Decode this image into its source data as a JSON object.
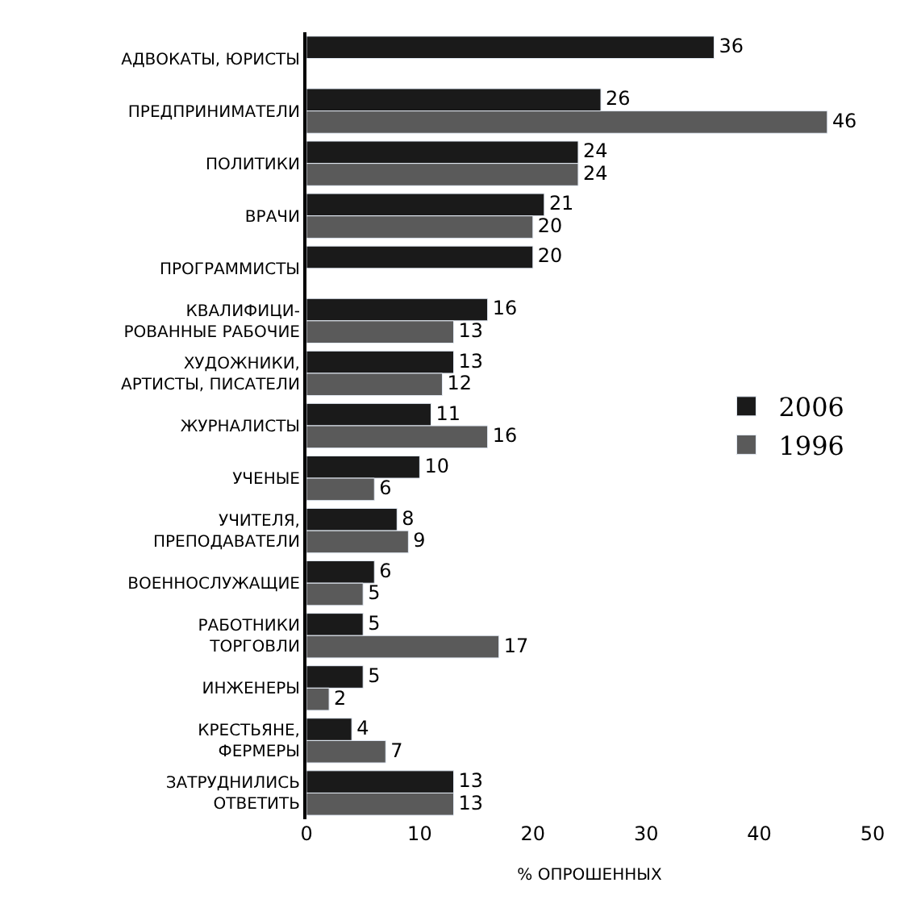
{
  "chart_data": {
    "type": "bar",
    "orientation": "horizontal",
    "xlabel": "% ОПРОШЕННЫХ",
    "categories": [
      "АДВОКАТЫ, ЮРИСТЫ",
      "ПРЕДПРИНИМАТЕЛИ",
      "ПОЛИТИКИ",
      "ВРАЧИ",
      "ПРОГРАММИСТЫ",
      "КВАЛИФИЦИ-\nРОВАННЫЕ РАБОЧИЕ",
      "ХУДОЖНИКИ,\nАРТИСТЫ, ПИСАТЕЛИ",
      "ЖУРНАЛИСТЫ",
      "УЧЕНЫЕ",
      "УЧИТЕЛЯ,\nПРЕПОДАВАТЕЛИ",
      "ВОЕННОСЛУЖАЩИЕ",
      "РАБОТНИКИ\nТОРГОВЛИ",
      "ИНЖЕНЕРЫ",
      "КРЕСТЬЯНЕ,\nФЕРМЕРЫ",
      "ЗАТРУДНИЛИСЬ\nОТВЕТИТЬ"
    ],
    "series": [
      {
        "name": "2006",
        "color": "#1a1a1a",
        "values": [
          36,
          26,
          24,
          21,
          20,
          16,
          13,
          11,
          10,
          8,
          6,
          5,
          5,
          4,
          13
        ]
      },
      {
        "name": "1996",
        "color": "#5a5a5a",
        "values": [
          null,
          46,
          24,
          20,
          null,
          13,
          12,
          16,
          6,
          9,
          5,
          17,
          2,
          7,
          13
        ]
      }
    ],
    "xlim": [
      0,
      50
    ],
    "xticks": [
      0,
      10,
      20,
      30,
      40,
      50
    ],
    "data_labels": true,
    "legend": "right"
  }
}
